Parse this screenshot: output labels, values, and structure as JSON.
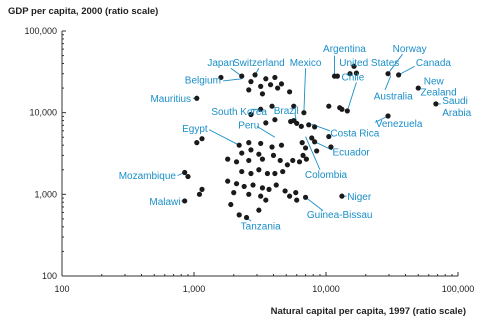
{
  "chart_data": {
    "type": "scatter",
    "title": "",
    "xlabel": "Natural capital per capita, 1997 (ratio scale)",
    "ylabel": "GDP per capita, 2000 (ratio scale)",
    "xscale": "log",
    "yscale": "log",
    "xlim": [
      100,
      100000
    ],
    "ylim": [
      100,
      100000
    ],
    "x_ticks": [
      100,
      1000,
      10000,
      100000
    ],
    "x_tick_labels": [
      "100",
      "1,000",
      "10,000",
      "100,000"
    ],
    "y_ticks": [
      100,
      1000,
      10000,
      100000
    ],
    "y_tick_labels": [
      "100",
      "1,000",
      "10,000",
      "100,000"
    ],
    "grid": false,
    "colors": {
      "points": "#1a1a1a",
      "labels": "#1a8fc9",
      "leaders": "#1a8fc9",
      "axis": "#333333"
    },
    "points": [
      {
        "x": 1600,
        "y": 27000
      },
      {
        "x": 2300,
        "y": 28000
      },
      {
        "x": 2900,
        "y": 29000
      },
      {
        "x": 3500,
        "y": 26000
      },
      {
        "x": 4100,
        "y": 27000
      },
      {
        "x": 2700,
        "y": 24000
      },
      {
        "x": 3200,
        "y": 21000
      },
      {
        "x": 3800,
        "y": 22000
      },
      {
        "x": 4600,
        "y": 22500
      },
      {
        "x": 4300,
        "y": 20000
      },
      {
        "x": 2600,
        "y": 19000
      },
      {
        "x": 3300,
        "y": 17000
      },
      {
        "x": 5300,
        "y": 18000
      },
      {
        "x": 12200,
        "y": 28000
      },
      {
        "x": 15200,
        "y": 30000
      },
      {
        "x": 16300,
        "y": 37000
      },
      {
        "x": 29500,
        "y": 30000
      },
      {
        "x": 35500,
        "y": 29000
      },
      {
        "x": 17000,
        "y": 30500
      },
      {
        "x": 13200,
        "y": 11000
      },
      {
        "x": 14500,
        "y": 10500
      },
      {
        "x": 10500,
        "y": 12000
      },
      {
        "x": 12700,
        "y": 11500
      },
      {
        "x": 11600,
        "y": 28000
      },
      {
        "x": 50000,
        "y": 20000
      },
      {
        "x": 68000,
        "y": 12800
      },
      {
        "x": 29500,
        "y": 9100
      },
      {
        "x": 1050,
        "y": 15000
      },
      {
        "x": 2700,
        "y": 9500
      },
      {
        "x": 3200,
        "y": 11000
      },
      {
        "x": 3900,
        "y": 12000
      },
      {
        "x": 5700,
        "y": 12000
      },
      {
        "x": 6800,
        "y": 10000
      },
      {
        "x": 6000,
        "y": 7400
      },
      {
        "x": 5700,
        "y": 8000
      },
      {
        "x": 7400,
        "y": 7100
      },
      {
        "x": 6500,
        "y": 6800
      },
      {
        "x": 8200,
        "y": 6700
      },
      {
        "x": 3500,
        "y": 7500
      },
      {
        "x": 4100,
        "y": 8200
      },
      {
        "x": 5400,
        "y": 7800
      },
      {
        "x": 7800,
        "y": 4900
      },
      {
        "x": 8200,
        "y": 4400
      },
      {
        "x": 10500,
        "y": 5100
      },
      {
        "x": 10900,
        "y": 3800
      },
      {
        "x": 8500,
        "y": 3400
      },
      {
        "x": 7000,
        "y": 3700
      },
      {
        "x": 6600,
        "y": 4300
      },
      {
        "x": 4600,
        "y": 4000
      },
      {
        "x": 3900,
        "y": 3800
      },
      {
        "x": 3200,
        "y": 4200
      },
      {
        "x": 2600,
        "y": 4300
      },
      {
        "x": 2200,
        "y": 4000
      },
      {
        "x": 1050,
        "y": 4300
      },
      {
        "x": 1150,
        "y": 4800
      },
      {
        "x": 2300,
        "y": 3200
      },
      {
        "x": 2700,
        "y": 3500
      },
      {
        "x": 3100,
        "y": 3100
      },
      {
        "x": 1800,
        "y": 2700
      },
      {
        "x": 2100,
        "y": 2500
      },
      {
        "x": 2600,
        "y": 2600
      },
      {
        "x": 3300,
        "y": 2700
      },
      {
        "x": 4000,
        "y": 3000
      },
      {
        "x": 4500,
        "y": 2600
      },
      {
        "x": 5100,
        "y": 2300
      },
      {
        "x": 5600,
        "y": 2600
      },
      {
        "x": 6300,
        "y": 2500
      },
      {
        "x": 7100,
        "y": 2700
      },
      {
        "x": 6700,
        "y": 3000
      },
      {
        "x": 3100,
        "y": 2000
      },
      {
        "x": 3600,
        "y": 1800
      },
      {
        "x": 2300,
        "y": 1900
      },
      {
        "x": 2700,
        "y": 1800
      },
      {
        "x": 4100,
        "y": 1800
      },
      {
        "x": 4700,
        "y": 1900
      },
      {
        "x": 1800,
        "y": 1450
      },
      {
        "x": 2100,
        "y": 1350
      },
      {
        "x": 2400,
        "y": 1250
      },
      {
        "x": 2800,
        "y": 1300
      },
      {
        "x": 3300,
        "y": 1200
      },
      {
        "x": 3700,
        "y": 1150
      },
      {
        "x": 4200,
        "y": 1300
      },
      {
        "x": 4900,
        "y": 1100
      },
      {
        "x": 5300,
        "y": 950
      },
      {
        "x": 5900,
        "y": 1050
      },
      {
        "x": 7000,
        "y": 920
      },
      {
        "x": 6000,
        "y": 850
      },
      {
        "x": 2000,
        "y": 1050
      },
      {
        "x": 2600,
        "y": 1000
      },
      {
        "x": 3200,
        "y": 950
      },
      {
        "x": 3500,
        "y": 850
      },
      {
        "x": 13200,
        "y": 950
      },
      {
        "x": 850,
        "y": 1850
      },
      {
        "x": 900,
        "y": 1650
      },
      {
        "x": 1150,
        "y": 1150
      },
      {
        "x": 1100,
        "y": 1000
      },
      {
        "x": 850,
        "y": 830
      },
      {
        "x": 1900,
        "y": 750
      },
      {
        "x": 2200,
        "y": 560
      },
      {
        "x": 2500,
        "y": 520
      },
      {
        "x": 3100,
        "y": 640
      }
    ],
    "labels": [
      {
        "name": "Argentina",
        "at": [
          9500,
          61000
        ],
        "anchor": "start",
        "leader": [
          [
            11600,
            50000
          ],
          [
            11600,
            28000
          ]
        ]
      },
      {
        "name": "United States",
        "at": [
          12600,
          41000
        ],
        "anchor": "start",
        "leader": [
          [
            17000,
            36000
          ],
          [
            16300,
            37000
          ]
        ]
      },
      {
        "name": "Norway",
        "at": [
          32000,
          61000
        ],
        "anchor": "start",
        "leader": [
          [
            38000,
            52000
          ],
          [
            29500,
            30000
          ]
        ]
      },
      {
        "name": "Canada",
        "at": [
          48000,
          41000
        ],
        "anchor": "start",
        "leader": [
          [
            47000,
            37000
          ],
          [
            35500,
            29000
          ]
        ]
      },
      {
        "name": "Japan",
        "at": [
          1600,
          41000
        ],
        "anchor": "middle",
        "leader": [
          [
            1900,
            35000
          ],
          [
            2300,
            28000
          ]
        ]
      },
      {
        "name": "Switzerland",
        "at": [
          3100,
          41000
        ],
        "anchor": "middle",
        "leader": [
          [
            3100,
            35000
          ],
          [
            2900,
            29000
          ]
        ]
      },
      {
        "name": "Mexico",
        "at": [
          7000,
          41000
        ],
        "anchor": "middle",
        "leader": [
          [
            7000,
            35000
          ],
          [
            6800,
            10000
          ]
        ]
      },
      {
        "name": "Chile",
        "at": [
          16000,
          27500
        ],
        "anchor": "middle",
        "leader": [
          [
            17000,
            23500
          ],
          [
            14500,
            10500
          ]
        ]
      },
      {
        "name": "New",
        "at": [
          55000,
          24500
        ],
        "anchor": "start",
        "leader": null
      },
      {
        "name": "Zealand",
        "at": [
          52000,
          18000
        ],
        "anchor": "start",
        "leader": [
          [
            51000,
            19500
          ],
          [
            50000,
            20000
          ]
        ]
      },
      {
        "name": "Australia",
        "at": [
          23000,
          16000
        ],
        "anchor": "start",
        "leader": [
          [
            28000,
            19000
          ],
          [
            31000,
            28500
          ]
        ]
      },
      {
        "name": "Saudi",
        "at": [
          76000,
          14000
        ],
        "anchor": "start",
        "leader": null
      },
      {
        "name": "Arabia",
        "at": [
          76000,
          10000
        ],
        "anchor": "start",
        "leader": [
          [
            74000,
            12800
          ],
          [
            68000,
            12800
          ]
        ]
      },
      {
        "name": "Belgium",
        "at": [
          1600,
          25000
        ],
        "anchor": "end",
        "leader": [
          [
            1660,
            24500
          ],
          [
            2300,
            26000
          ]
        ]
      },
      {
        "name": "Mauritius",
        "at": [
          950,
          15000
        ],
        "anchor": "end",
        "leader": [
          [
            980,
            15000
          ],
          [
            1050,
            15000
          ]
        ]
      },
      {
        "name": "South Korea",
        "at": [
          2200,
          10300
        ],
        "anchor": "middle",
        "leader": [
          [
            2700,
            11000
          ],
          [
            3200,
            11000
          ]
        ]
      },
      {
        "name": "Brazil",
        "at": [
          5000,
          10600
        ],
        "anchor": "middle",
        "leader": [
          [
            5800,
            10000
          ],
          [
            6000,
            7400
          ]
        ]
      },
      {
        "name": "Venezuela",
        "at": [
          23800,
          7400
        ],
        "anchor": "start",
        "leader": [
          [
            23500,
            7600
          ],
          [
            29500,
            9100
          ]
        ]
      },
      {
        "name": "Egypt",
        "at": [
          1270,
          6400
        ],
        "anchor": "end",
        "leader": [
          [
            1300,
            6200
          ],
          [
            2200,
            4000
          ]
        ]
      },
      {
        "name": "Peru",
        "at": [
          2600,
          7100
        ],
        "anchor": "middle",
        "leader": [
          [
            3000,
            6800
          ],
          [
            4100,
            5000
          ]
        ]
      },
      {
        "name": "Costa Rica",
        "at": [
          10800,
          5600
        ],
        "anchor": "start",
        "leader": [
          [
            10700,
            6000
          ],
          [
            7800,
            7200
          ]
        ]
      },
      {
        "name": "Ecuador",
        "at": [
          11200,
          3300
        ],
        "anchor": "start",
        "leader": [
          [
            11100,
            3500
          ],
          [
            8200,
            4400
          ]
        ]
      },
      {
        "name": "Mozambique",
        "at": [
          730,
          1700
        ],
        "anchor": "end",
        "leader": [
          [
            750,
            1700
          ],
          [
            850,
            1850
          ]
        ]
      },
      {
        "name": "Colombia",
        "at": [
          10000,
          1750
        ],
        "anchor": "middle",
        "leader": [
          [
            9000,
            2000
          ],
          [
            7000,
            5100
          ]
        ]
      },
      {
        "name": "Malawi",
        "at": [
          790,
          820
        ],
        "anchor": "end",
        "leader": [
          [
            800,
            830
          ],
          [
            850,
            830
          ]
        ]
      },
      {
        "name": "Niger",
        "at": [
          14500,
          940
        ],
        "anchor": "start",
        "leader": [
          [
            14300,
            950
          ],
          [
            13200,
            950
          ]
        ]
      },
      {
        "name": "Guinea-Bissau",
        "at": [
          12700,
          570
        ],
        "anchor": "middle",
        "leader": [
          [
            9500,
            630
          ],
          [
            7000,
            920
          ]
        ]
      },
      {
        "name": "Tanzania",
        "at": [
          3200,
          410
        ],
        "anchor": "middle",
        "leader": [
          [
            2700,
            470
          ],
          [
            2500,
            520
          ]
        ]
      }
    ]
  }
}
